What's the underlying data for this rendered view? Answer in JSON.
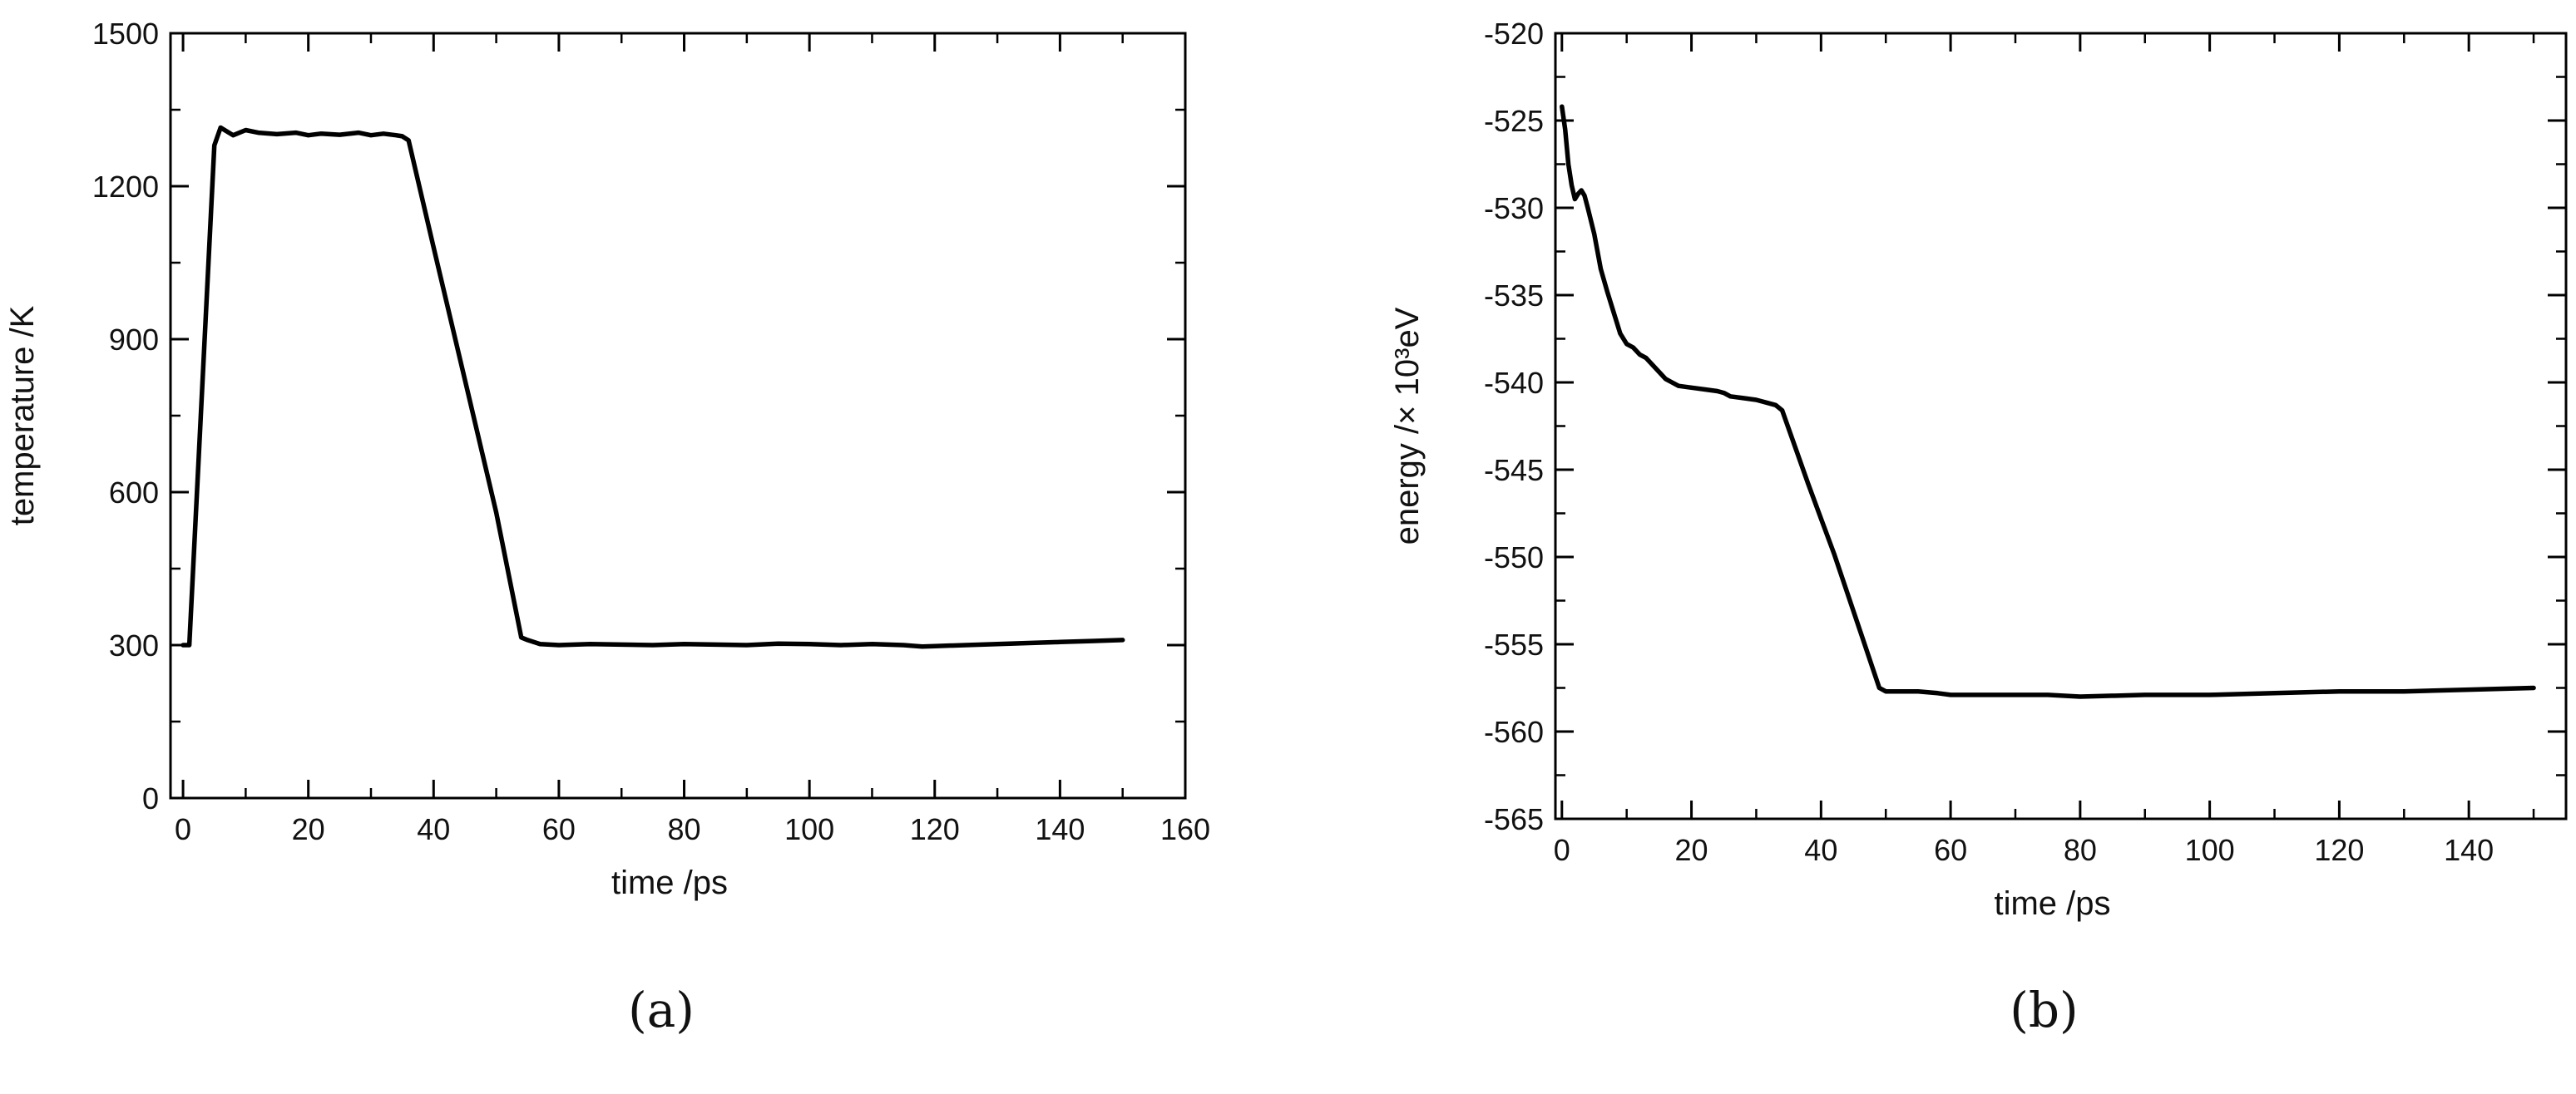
{
  "chart_data": [
    {
      "type": "line",
      "caption": "(a)",
      "xlabel": "time /ps",
      "ylabel": "temperature /K",
      "xlim": [
        -2,
        160
      ],
      "ylim": [
        0,
        1500
      ],
      "x_ticks": [
        0,
        20,
        40,
        60,
        80,
        100,
        120,
        140,
        160
      ],
      "y_ticks": [
        0,
        300,
        600,
        900,
        1200,
        1500
      ],
      "x_tick_labels": [
        "0",
        "20",
        "40",
        "60",
        "80",
        "100",
        "120",
        "140",
        "160"
      ],
      "y_tick_labels": [
        "0",
        "300",
        "600",
        "900",
        "1200",
        "1500"
      ],
      "grid": false,
      "series": [
        {
          "color": "#000000",
          "x": [
            0,
            1,
            5,
            6,
            8,
            10,
            12,
            15,
            18,
            20,
            22,
            25,
            28,
            30,
            32,
            34,
            35,
            36,
            40,
            45,
            50,
            54,
            55,
            57,
            60,
            65,
            70,
            75,
            80,
            85,
            90,
            95,
            100,
            105,
            110,
            115,
            118,
            120,
            125,
            130,
            135,
            140,
            145,
            150
          ],
          "y": [
            300,
            300,
            1280,
            1315,
            1300,
            1310,
            1305,
            1302,
            1305,
            1300,
            1303,
            1301,
            1305,
            1300,
            1303,
            1300,
            1298,
            1290,
            1080,
            820,
            560,
            315,
            310,
            302,
            300,
            302,
            301,
            300,
            302,
            301,
            300,
            303,
            302,
            300,
            302,
            300,
            297,
            298,
            300,
            302,
            304,
            306,
            308,
            310
          ]
        }
      ]
    },
    {
      "type": "line",
      "caption": "(b)",
      "xlabel": "time /ps",
      "ylabel": "energy /× 10³eV",
      "xlim": [
        -1,
        155
      ],
      "ylim": [
        -565,
        -520
      ],
      "x_ticks": [
        0,
        20,
        40,
        60,
        80,
        100,
        120,
        140
      ],
      "y_ticks": [
        -565,
        -560,
        -555,
        -550,
        -545,
        -540,
        -535,
        -530,
        -525,
        -520
      ],
      "x_tick_labels": [
        "0",
        "20",
        "40",
        "60",
        "80",
        "100",
        "120",
        "140"
      ],
      "y_tick_labels": [
        "-565",
        "-560",
        "-555",
        "-550",
        "-545",
        "-540",
        "-535",
        "-530",
        "-525",
        "-520"
      ],
      "grid": false,
      "series": [
        {
          "color": "#000000",
          "x": [
            0,
            0.5,
            1,
            1.5,
            2,
            2.5,
            3,
            3.5,
            4,
            5,
            6,
            7,
            8,
            9,
            10,
            11,
            12,
            13,
            14,
            15,
            16,
            17,
            18,
            20,
            22,
            24,
            25,
            26,
            28,
            30,
            32,
            33,
            34,
            36,
            38,
            40,
            42,
            44,
            46,
            48,
            49,
            50,
            52,
            55,
            58,
            60,
            65,
            70,
            75,
            80,
            90,
            100,
            110,
            120,
            130,
            140,
            150
          ],
          "y": [
            -524.2,
            -525.5,
            -527.5,
            -528.7,
            -529.5,
            -529.2,
            -529.0,
            -529.3,
            -530.0,
            -531.5,
            -533.5,
            -534.8,
            -536.0,
            -537.2,
            -537.8,
            -538.0,
            -538.4,
            -538.6,
            -539.0,
            -539.4,
            -539.8,
            -540.0,
            -540.2,
            -540.3,
            -540.4,
            -540.5,
            -540.6,
            -540.8,
            -540.9,
            -541.0,
            -541.2,
            -541.3,
            -541.6,
            -543.7,
            -545.8,
            -547.8,
            -549.8,
            -552.0,
            -554.2,
            -556.4,
            -557.5,
            -557.7,
            -557.7,
            -557.7,
            -557.8,
            -557.9,
            -557.9,
            -557.9,
            -557.9,
            -558.0,
            -557.9,
            -557.9,
            -557.8,
            -557.7,
            -557.7,
            -557.6,
            -557.5
          ]
        }
      ]
    }
  ]
}
